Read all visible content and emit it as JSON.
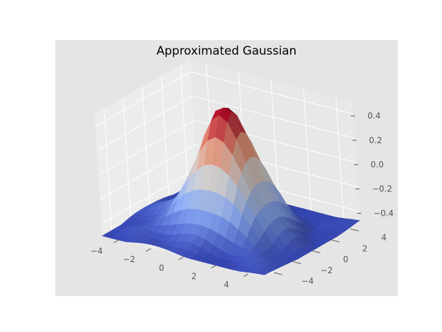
{
  "chart_data": {
    "type": "surface3d",
    "title": "Approximated Gaussian",
    "colormap": "coolwarm",
    "colormap_colors": [
      "#3b4cc0",
      "#8db0fe",
      "#dddddd",
      "#f49a7b",
      "#b40426"
    ],
    "background_color": "#e5e5e5",
    "grid": true,
    "x_range": [
      -5,
      5
    ],
    "y_range": [
      -5,
      5
    ],
    "zlim": [
      -0.5,
      0.5
    ],
    "x_ticks": [
      -4,
      -2,
      0,
      2,
      4
    ],
    "y_ticks": [
      -4,
      -2,
      0,
      2,
      4
    ],
    "z_ticks": [
      0.4,
      0.2,
      0.0,
      -0.2,
      -0.4
    ],
    "x_tick_labels": [
      "−4",
      "−2",
      "0",
      "2",
      "4"
    ],
    "y_tick_labels": [
      "−4",
      "−2",
      "0",
      "2",
      "4"
    ],
    "z_tick_labels": [
      "0.4",
      "0.2",
      "0.0",
      "−0.2",
      "−0.4"
    ],
    "grid_samples": 21,
    "surface_peak": 0.48,
    "surface_floor": -0.5
  }
}
